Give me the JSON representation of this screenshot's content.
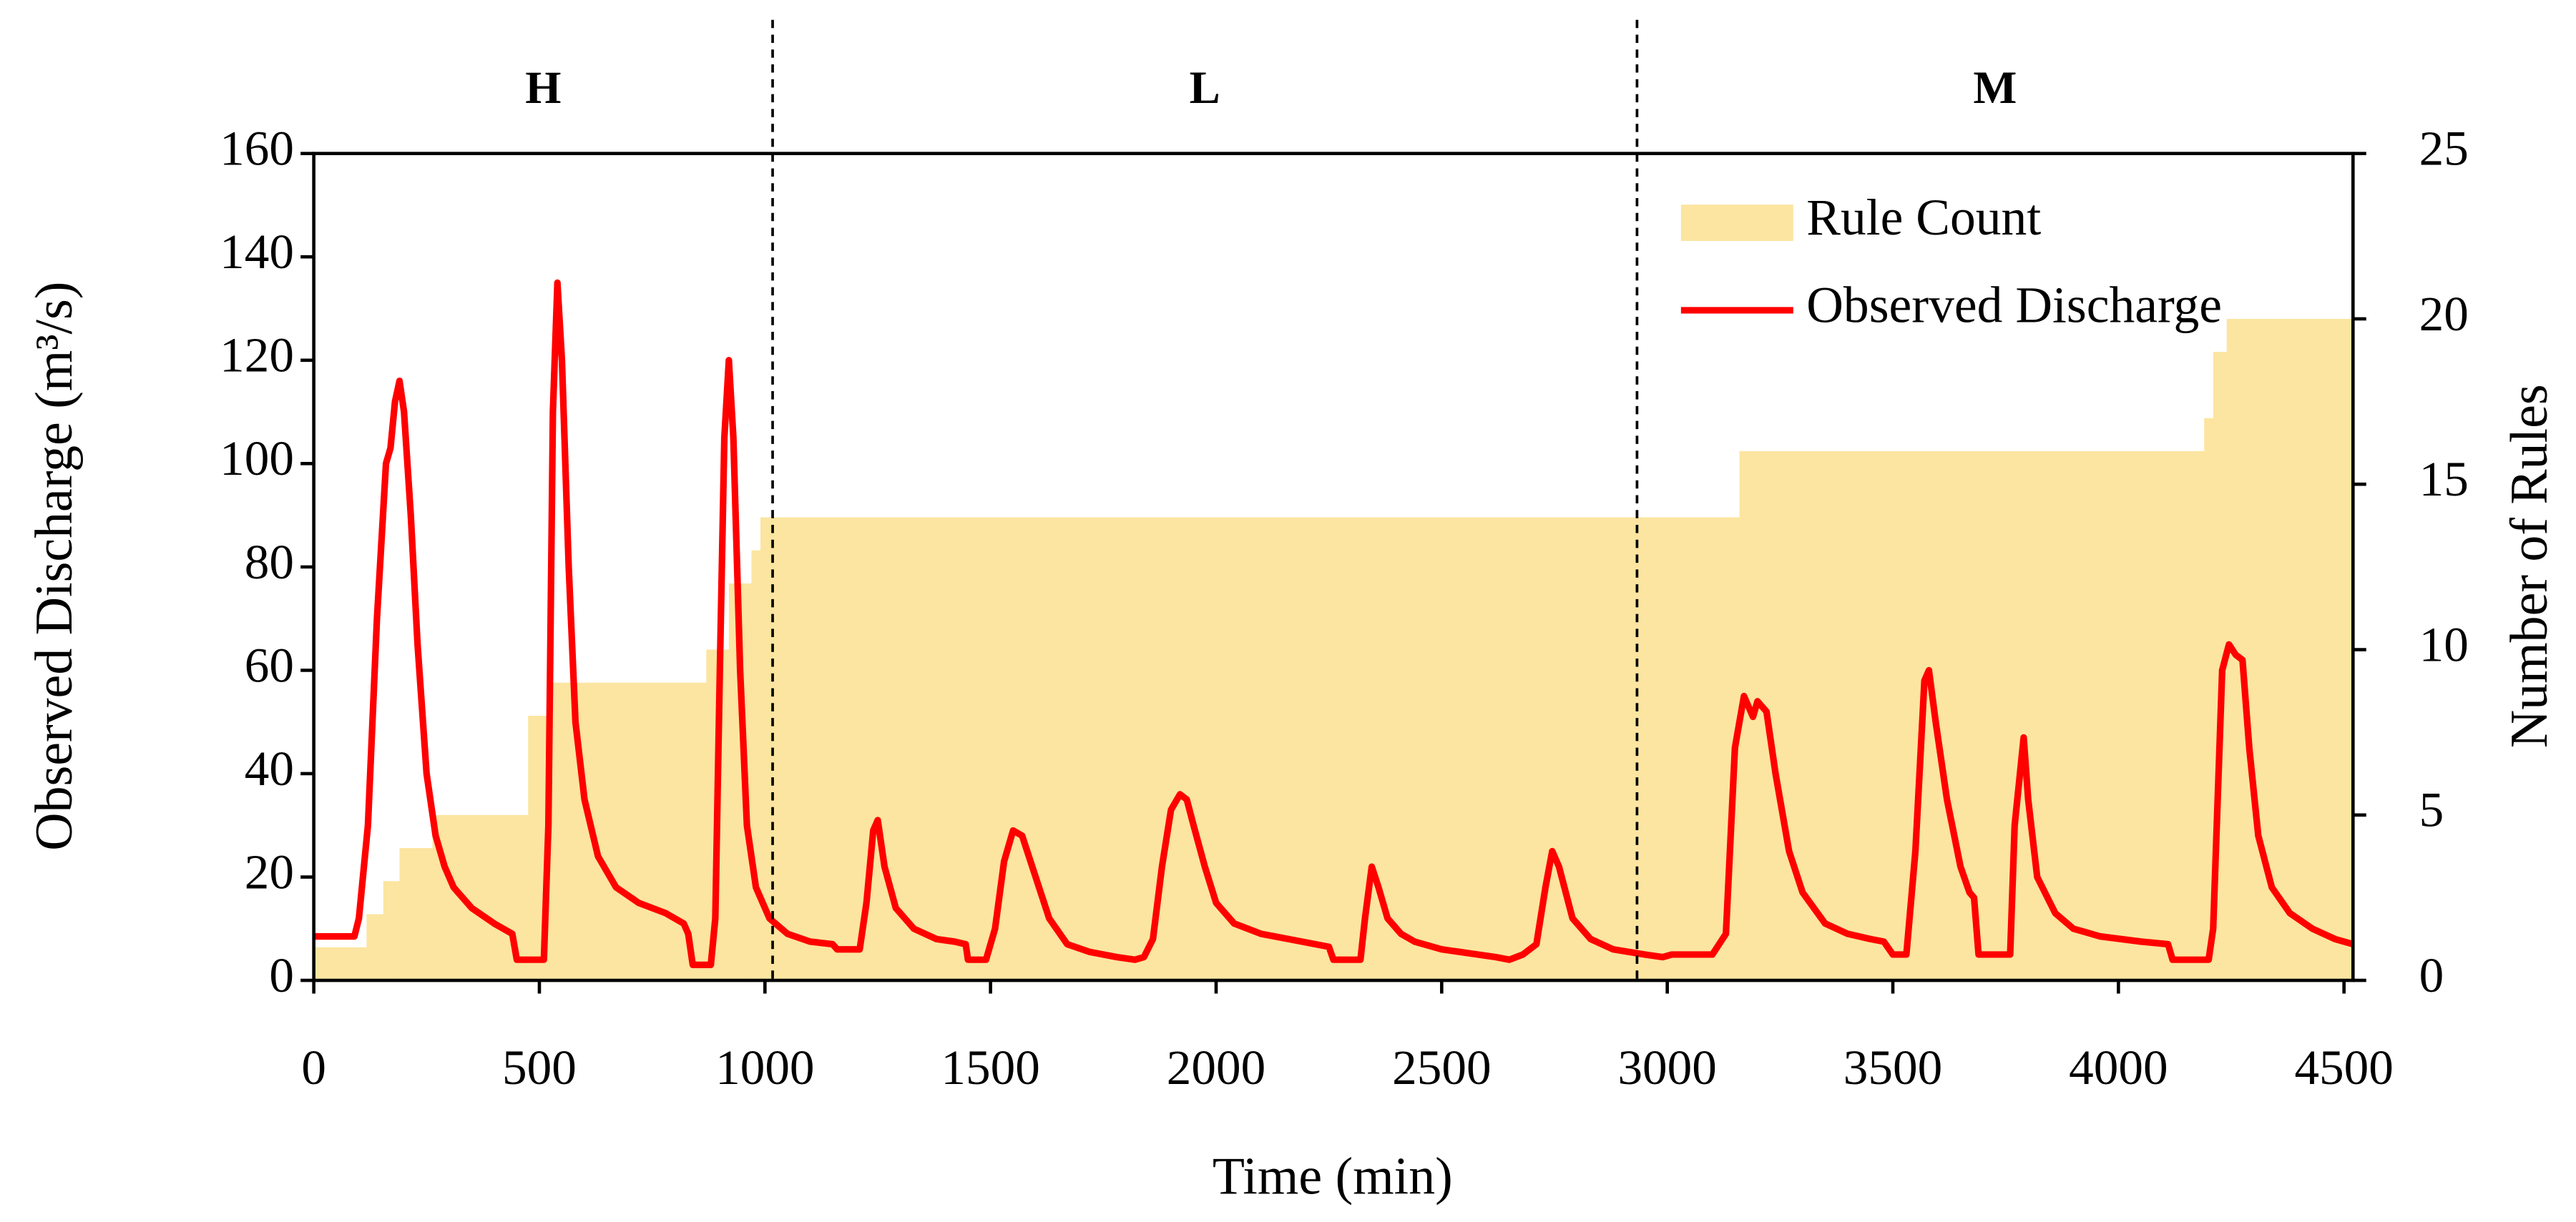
{
  "chart_data": {
    "type": "line",
    "xlabel": "Time (min)",
    "ylabel": "Observed Discharge (m³/s)",
    "y2label": "Number of Rules",
    "xlim": [
      0,
      4520
    ],
    "xticks": [
      0,
      500,
      1000,
      1500,
      2000,
      2500,
      3000,
      3500,
      4000,
      4500
    ],
    "ylim": [
      0,
      160
    ],
    "yticks": [
      0,
      20,
      40,
      60,
      80,
      100,
      120,
      140,
      160
    ],
    "y2lim": [
      0,
      25
    ],
    "y2ticks": [
      0,
      5,
      10,
      15,
      20,
      25
    ],
    "grid": false,
    "legend": "upper right",
    "regions": [
      "H",
      "L",
      "M"
    ],
    "dividers": [
      1017,
      2933
    ],
    "series": [
      {
        "name": "Rule Count",
        "color": "#fce5a0",
        "axis": "y2",
        "kind": "step-area",
        "x": [
          0,
          117,
          154,
          190,
          263,
          475,
          530,
          870,
          920,
          970,
          990,
          3160,
          4190,
          4210,
          4240
        ],
        "values": [
          1,
          2,
          3,
          4,
          5,
          8,
          9,
          10,
          12,
          13,
          14,
          16,
          17,
          19,
          20
        ]
      },
      {
        "name": "Observed Discharge",
        "color": "#ff0000",
        "x": [
          0,
          90,
          100,
          120,
          140,
          160,
          170,
          180,
          190,
          200,
          215,
          230,
          250,
          270,
          290,
          310,
          350,
          400,
          440,
          450,
          510,
          520,
          530,
          540,
          550,
          565,
          580,
          600,
          630,
          670,
          720,
          780,
          820,
          830,
          840,
          880,
          890,
          900,
          910,
          920,
          930,
          945,
          960,
          980,
          1010,
          1050,
          1100,
          1150,
          1160,
          1180,
          1210,
          1225,
          1240,
          1250,
          1265,
          1290,
          1330,
          1380,
          1420,
          1445,
          1450,
          1490,
          1510,
          1530,
          1550,
          1570,
          1600,
          1630,
          1670,
          1720,
          1780,
          1820,
          1840,
          1860,
          1880,
          1900,
          1920,
          1935,
          1950,
          1975,
          2000,
          2040,
          2100,
          2160,
          2220,
          2250,
          2260,
          2320,
          2330,
          2345,
          2360,
          2380,
          2410,
          2440,
          2500,
          2580,
          2620,
          2650,
          2680,
          2710,
          2730,
          2745,
          2760,
          2790,
          2830,
          2880,
          2950,
          2990,
          3010,
          3050,
          3100,
          3130,
          3150,
          3170,
          3180,
          3190,
          3200,
          3220,
          3240,
          3270,
          3300,
          3350,
          3400,
          3450,
          3480,
          3500,
          3530,
          3550,
          3570,
          3580,
          3595,
          3620,
          3650,
          3670,
          3680,
          3690,
          3760,
          3770,
          3790,
          3800,
          3820,
          3860,
          3900,
          3960,
          4050,
          4110,
          4120,
          4200,
          4210,
          4230,
          4245,
          4260,
          4275,
          4290,
          4310,
          4340,
          4380,
          4430,
          4480,
          4520
        ],
        "values": [
          8.5,
          8.5,
          12,
          30,
          70,
          100,
          103,
          112,
          116,
          110,
          90,
          65,
          40,
          28,
          22,
          18,
          14,
          11,
          9,
          4,
          4,
          30,
          110,
          135,
          120,
          80,
          50,
          35,
          24,
          18,
          15,
          13,
          11,
          9,
          3,
          3,
          12,
          60,
          105,
          120,
          105,
          60,
          30,
          18,
          12,
          9,
          7.5,
          7,
          6,
          6,
          6,
          15,
          29,
          31,
          22,
          14,
          10,
          8,
          7.5,
          7,
          4,
          4,
          10,
          23,
          29,
          28,
          20,
          12,
          7,
          5.5,
          4.5,
          4,
          4.5,
          8,
          22,
          33,
          36,
          35,
          30,
          22,
          15,
          11,
          9,
          8,
          7,
          6.5,
          4,
          4,
          12,
          22,
          18,
          12,
          9,
          7.5,
          6,
          5,
          4.5,
          4,
          5,
          7,
          18,
          25,
          22,
          12,
          8,
          6,
          5,
          4.5,
          5,
          5,
          5,
          9,
          45,
          55,
          53,
          51,
          54,
          52,
          40,
          25,
          17,
          11,
          9,
          8,
          7.5,
          5,
          5,
          25,
          58,
          60,
          50,
          35,
          22,
          17,
          16,
          5,
          5,
          30,
          47,
          35,
          20,
          13,
          10,
          8.5,
          7.5,
          7,
          4,
          4,
          10,
          60,
          65,
          63,
          62,
          45,
          28,
          18,
          13,
          10,
          8,
          7
        ]
      }
    ]
  }
}
